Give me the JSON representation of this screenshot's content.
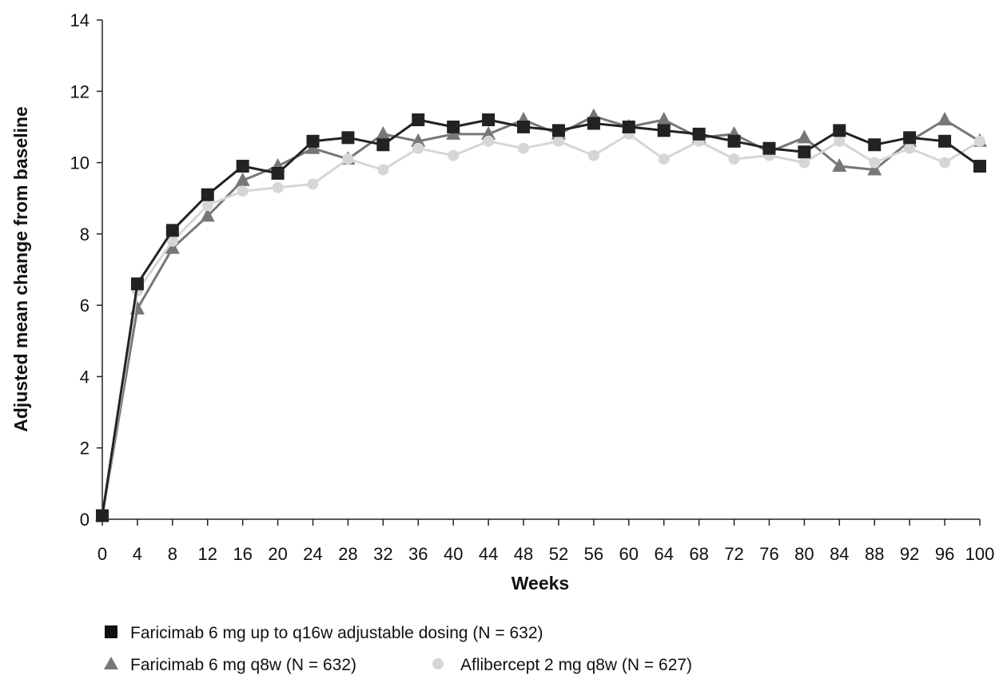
{
  "chart_data": {
    "type": "line",
    "title": "",
    "xlabel": "Weeks",
    "ylabel": "Adjusted mean change from baseline",
    "xlim": [
      0,
      100
    ],
    "ylim": [
      0,
      14
    ],
    "x_ticks": [
      0,
      4,
      8,
      12,
      16,
      20,
      24,
      28,
      32,
      36,
      40,
      44,
      48,
      52,
      56,
      60,
      64,
      68,
      72,
      76,
      80,
      84,
      88,
      92,
      96,
      100
    ],
    "y_ticks": [
      0,
      2,
      4,
      6,
      8,
      10,
      12,
      14
    ],
    "grid": false,
    "legend_position": "bottom-left",
    "x": [
      0,
      4,
      8,
      12,
      16,
      20,
      24,
      28,
      32,
      36,
      40,
      44,
      48,
      52,
      56,
      60,
      64,
      68,
      72,
      76,
      80,
      84,
      88,
      92,
      96,
      100
    ],
    "series": [
      {
        "name": "Faricimab 6 mg q8w (N = 632)",
        "marker": "triangle",
        "color": "#777777",
        "values": [
          0.1,
          5.9,
          7.6,
          8.5,
          9.5,
          9.9,
          10.4,
          10.1,
          10.8,
          10.6,
          10.8,
          10.8,
          11.2,
          10.8,
          11.3,
          11.0,
          11.2,
          10.7,
          10.8,
          10.3,
          10.7,
          9.9,
          9.8,
          10.6,
          11.2,
          10.6
        ]
      },
      {
        "name": "Aflibercept 2 mg q8w (N = 627)",
        "marker": "circle",
        "color": "#d6d6d6",
        "values": [
          0.1,
          6.4,
          7.8,
          8.8,
          9.2,
          9.3,
          9.4,
          10.1,
          9.8,
          10.4,
          10.2,
          10.6,
          10.4,
          10.6,
          10.2,
          10.8,
          10.1,
          10.6,
          10.1,
          10.2,
          10.0,
          10.6,
          10.0,
          10.4,
          10.0,
          10.6
        ]
      },
      {
        "name": "Faricimab 6 mg up to q16w adjustable dosing (N = 632)",
        "marker": "square",
        "color": "#222222",
        "values": [
          0.1,
          6.6,
          8.1,
          9.1,
          9.9,
          9.7,
          10.6,
          10.7,
          10.5,
          11.2,
          11.0,
          11.2,
          11.0,
          10.9,
          11.1,
          11.0,
          10.9,
          10.8,
          10.6,
          10.4,
          10.3,
          10.9,
          10.5,
          10.7,
          10.6,
          9.9
        ]
      }
    ]
  }
}
